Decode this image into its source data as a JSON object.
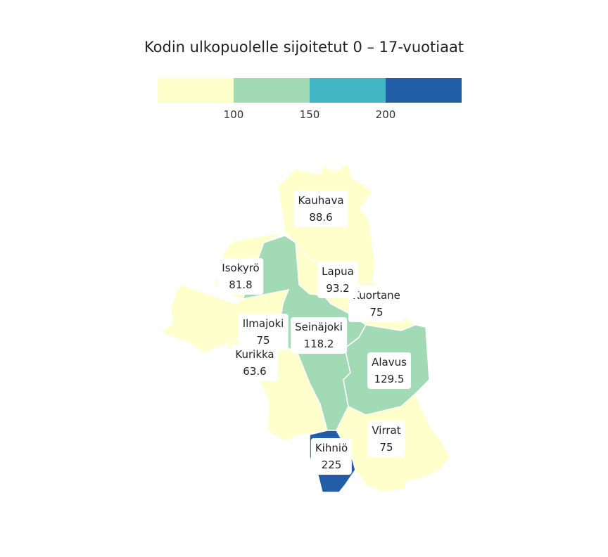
{
  "title": "Kodin ulkopuolelle sijoitetut 0 – 17-vuotiaat",
  "legend": {
    "colors": [
      "#ffffcc",
      "#a1dab4",
      "#41b6c4",
      "#225ea8"
    ],
    "ticks": [
      "100",
      "150",
      "200"
    ]
  },
  "regions": [
    {
      "name": "Kauhava",
      "value": "88.6",
      "color": "#ffffcc"
    },
    {
      "name": "Isokyrö",
      "value": "81.8",
      "color": "#ffffcc"
    },
    {
      "name": "Lapua",
      "value": "93.2",
      "color": "#ffffcc"
    },
    {
      "name": "Kuortane",
      "value": "75",
      "color": "#ffffcc"
    },
    {
      "name": "Ilmajoki",
      "value": "75",
      "color": "#ffffcc"
    },
    {
      "name": "Seinäjoki",
      "value": "118.2",
      "color": "#a1dab4"
    },
    {
      "name": "Kurikka",
      "value": "63.6",
      "color": "#ffffcc"
    },
    {
      "name": "Alavus",
      "value": "129.5",
      "color": "#a1dab4"
    },
    {
      "name": "Virrat",
      "value": "75",
      "color": "#ffffcc"
    },
    {
      "name": "Kihniö",
      "value": "225",
      "color": "#225ea8"
    }
  ]
}
